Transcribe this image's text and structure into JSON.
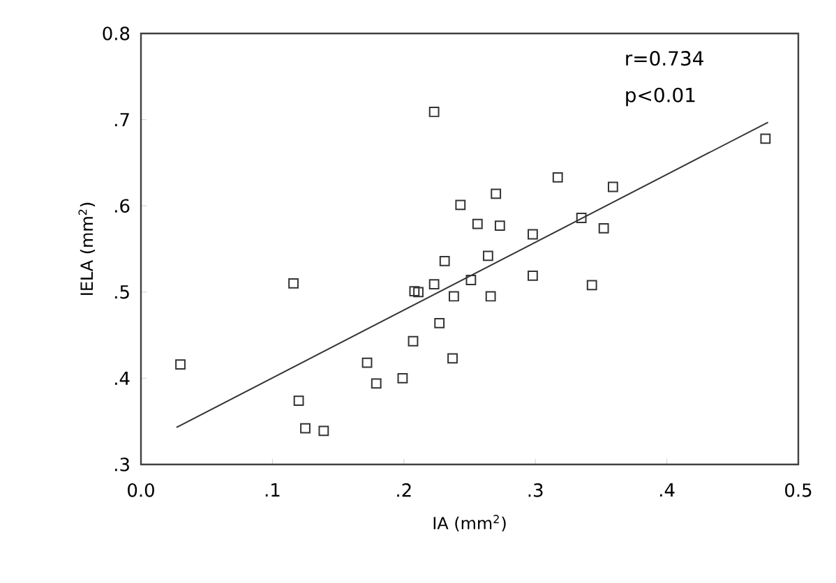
{
  "chart_data": {
    "type": "scatter",
    "xlabel": "IA (mm$^{2}$)",
    "ylabel": "IELA (mm$^{2}$)",
    "xlim": [
      0.0,
      0.5
    ],
    "ylim": [
      0.3,
      0.8
    ],
    "xticks": [
      {
        "value": 0.0,
        "label": "0.0"
      },
      {
        "value": 0.1,
        "label": ".1"
      },
      {
        "value": 0.2,
        "label": ".2"
      },
      {
        "value": 0.3,
        "label": ".3"
      },
      {
        "value": 0.4,
        "label": ".4"
      },
      {
        "value": 0.5,
        "label": "0.5"
      }
    ],
    "yticks": [
      {
        "value": 0.3,
        "label": ".3"
      },
      {
        "value": 0.4,
        "label": ".4"
      },
      {
        "value": 0.5,
        "label": ".5"
      },
      {
        "value": 0.6,
        "label": ".6"
      },
      {
        "value": 0.7,
        "label": ".7"
      },
      {
        "value": 0.8,
        "label": "0.8"
      }
    ],
    "marker": "square",
    "annotations": [
      "r=0.734",
      "p<0.01"
    ],
    "series": [
      {
        "color": "#333333",
        "x": [
          0.03,
          0.116,
          0.12,
          0.125,
          0.139,
          0.172,
          0.179,
          0.199,
          0.207,
          0.208,
          0.211,
          0.223,
          0.223,
          0.227,
          0.231,
          0.237,
          0.238,
          0.243,
          0.251,
          0.256,
          0.264,
          0.266,
          0.27,
          0.273,
          0.298,
          0.298,
          0.317,
          0.335,
          0.343,
          0.352,
          0.359,
          0.475
        ],
        "values": [
          0.416,
          0.51,
          0.374,
          0.342,
          0.339,
          0.418,
          0.394,
          0.4,
          0.443,
          0.501,
          0.5,
          0.509,
          0.709,
          0.464,
          0.536,
          0.423,
          0.495,
          0.601,
          0.514,
          0.579,
          0.542,
          0.495,
          0.614,
          0.577,
          0.567,
          0.519,
          0.633,
          0.586,
          0.508,
          0.574,
          0.622,
          0.678
        ]
      },
      {
        "type": "line",
        "color": "#333333",
        "marker": "none",
        "x": [
          0.027,
          0.477
        ],
        "values": [
          0.343,
          0.697
        ]
      }
    ]
  }
}
